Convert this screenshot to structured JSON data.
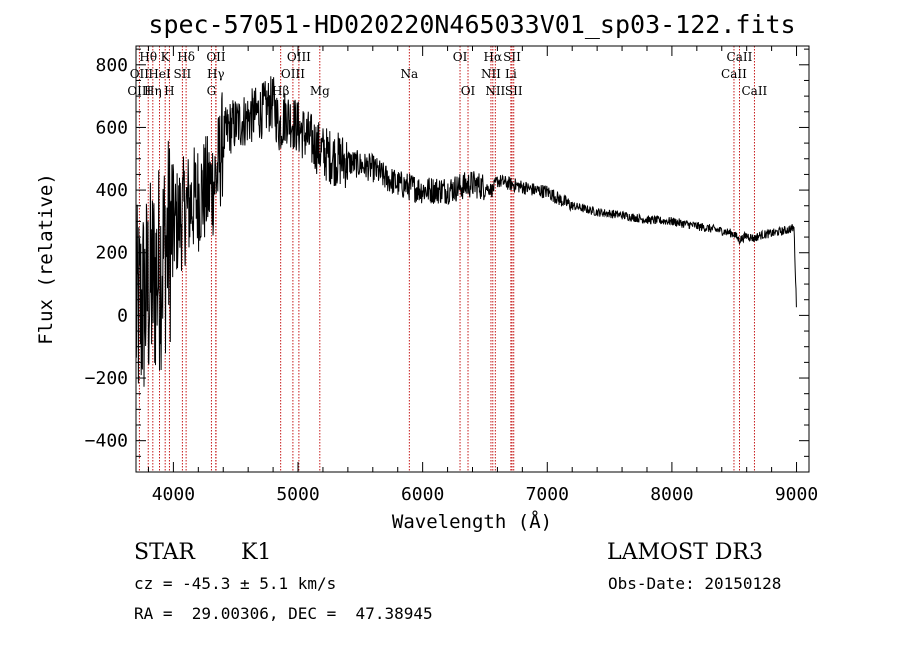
{
  "chart_data": {
    "type": "line",
    "title": "spec-57051-HD020220N465033V01_sp03-122.fits",
    "xlabel": "Wavelength (Å)",
    "ylabel": "Flux (relative)",
    "xlim": [
      3700,
      9100
    ],
    "ylim": [
      -500,
      860
    ],
    "xticks": [
      4000,
      5000,
      6000,
      7000,
      8000,
      9000
    ],
    "yticks": [
      -400,
      -200,
      0,
      200,
      400,
      600,
      800
    ],
    "spectrum_envelope": {
      "x": [
        3700,
        3750,
        3800,
        3850,
        3900,
        3950,
        4000,
        4100,
        4200,
        4300,
        4350,
        4400,
        4450,
        4500,
        4600,
        4700,
        4800,
        4850,
        4900,
        5000,
        5100,
        5200,
        5300,
        5400,
        5500,
        5600,
        5700,
        5800,
        5900,
        6000,
        6100,
        6200,
        6300,
        6400,
        6500,
        6560,
        6600,
        6700,
        6800,
        6900,
        7000,
        7100,
        7200,
        7400,
        7600,
        7800,
        8000,
        8200,
        8400,
        8500,
        8540,
        8600,
        8660,
        8700,
        8800,
        8900,
        8980,
        9000
      ],
      "y": [
        0,
        30,
        80,
        120,
        170,
        230,
        280,
        340,
        380,
        410,
        450,
        560,
        600,
        610,
        630,
        650,
        680,
        600,
        640,
        600,
        560,
        520,
        500,
        490,
        480,
        470,
        440,
        420,
        410,
        400,
        400,
        400,
        410,
        420,
        410,
        400,
        430,
        420,
        410,
        400,
        395,
        370,
        350,
        330,
        320,
        305,
        300,
        285,
        270,
        260,
        240,
        255,
        245,
        255,
        262,
        270,
        280,
        20
      ]
    },
    "spectral_lines": [
      {
        "label": "Hθ",
        "wavelength": 3798,
        "row": 0
      },
      {
        "label": "K",
        "wavelength": 3934,
        "row": 0
      },
      {
        "label": "Hδ",
        "wavelength": 4102,
        "row": 0
      },
      {
        "label": "OII",
        "wavelength": 4342,
        "row": 0
      },
      {
        "label": "OIII",
        "wavelength": 5007,
        "row": 0
      },
      {
        "label": "OI",
        "wavelength": 6300,
        "row": 0
      },
      {
        "label": "Hα",
        "wavelength": 6563,
        "row": 0
      },
      {
        "label": "SII",
        "wavelength": 6717,
        "row": 0
      },
      {
        "label": "CaII",
        "wavelength": 8542,
        "row": 0
      },
      {
        "label": "OII",
        "wavelength": 3727,
        "row": 1
      },
      {
        "label": "HeI",
        "wavelength": 3889,
        "row": 1
      },
      {
        "label": "SII",
        "wavelength": 4072,
        "row": 1
      },
      {
        "label": "Hγ",
        "wavelength": 4340,
        "row": 1
      },
      {
        "label": "OIII",
        "wavelength": 4959,
        "row": 1
      },
      {
        "label": "Na",
        "wavelength": 5893,
        "row": 1
      },
      {
        "label": "NII",
        "wavelength": 6548,
        "row": 1
      },
      {
        "label": "Li",
        "wavelength": 6708,
        "row": 1
      },
      {
        "label": "CaII",
        "wavelength": 8498,
        "row": 1
      },
      {
        "label": "OIII",
        "wavelength": 3727,
        "row": 2
      },
      {
        "label": "Hη",
        "wavelength": 3835,
        "row": 2
      },
      {
        "label": "H",
        "wavelength": 3968,
        "row": 2
      },
      {
        "label": "G",
        "wavelength": 4305,
        "row": 2
      },
      {
        "label": "Hβ",
        "wavelength": 4861,
        "row": 2
      },
      {
        "label": "Mg",
        "wavelength": 5175,
        "row": 2
      },
      {
        "label": "OI",
        "wavelength": 6364,
        "row": 2
      },
      {
        "label": "NII",
        "wavelength": 6583,
        "row": 2
      },
      {
        "label": "SII",
        "wavelength": 6731,
        "row": 2
      },
      {
        "label": "CaII",
        "wavelength": 8662,
        "row": 2
      }
    ]
  },
  "info": {
    "object_class": "STAR",
    "subclass": "K1",
    "survey": "LAMOST DR3",
    "velocity": "cz = -45.3 ± 5.1 km/s",
    "obs_date": "Obs-Date: 20150128",
    "coordinates": "RA =  29.00306, DEC =  47.38945"
  },
  "colors": {
    "line_marker": "#c00000",
    "spectrum": "#000000"
  }
}
